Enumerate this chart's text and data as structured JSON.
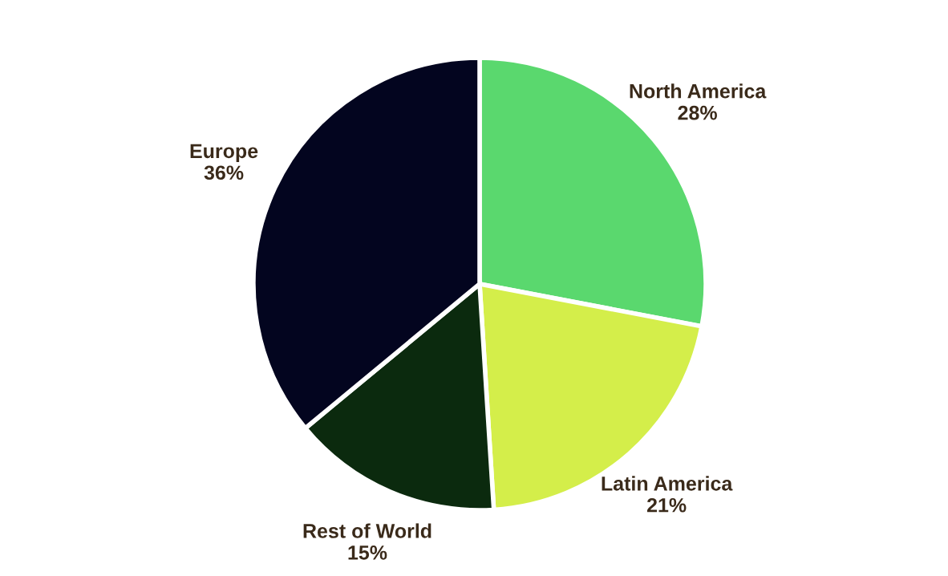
{
  "chart_data": {
    "type": "pie",
    "categories": [
      "North America",
      "Latin America",
      "Rest of World",
      "Europe"
    ],
    "values": [
      28,
      21,
      15,
      36
    ],
    "value_labels": [
      "28%",
      "21%",
      "15%",
      "36%"
    ],
    "colors": [
      "#5ad86e",
      "#d4ee4a",
      "#0b2a0e",
      "#03051f"
    ]
  }
}
